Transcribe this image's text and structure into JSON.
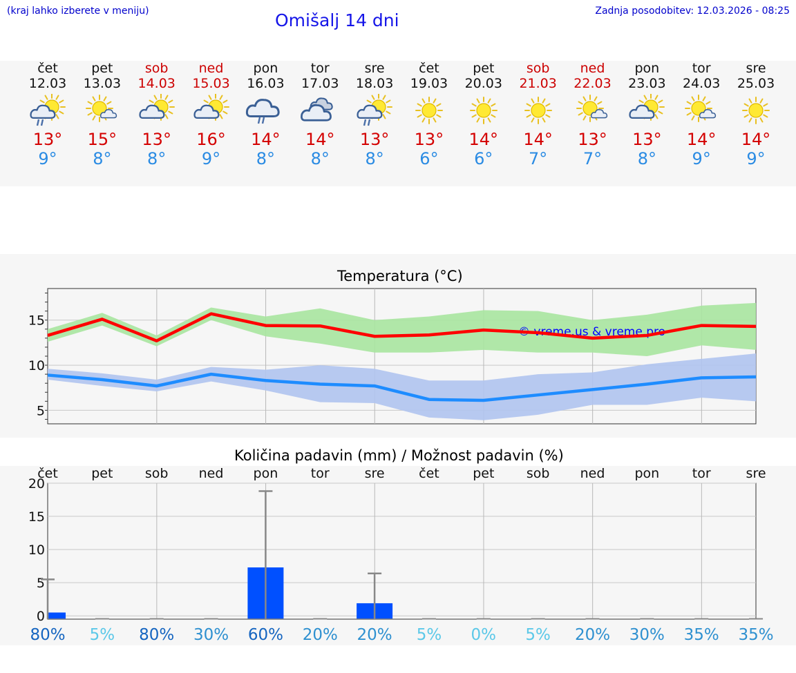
{
  "header": {
    "hint": "(kraj lahko izberete v meniju)",
    "title": "Omišalj 14 dni",
    "updated": "Zadnja posodobitev: 12.03.2026 - 08:25"
  },
  "forecast": [
    {
      "day": "čet",
      "date": "12.03",
      "weekend": false,
      "icon": "sun-cloud-rain-icon",
      "tmax": "13°",
      "tmin": "9°"
    },
    {
      "day": "pet",
      "date": "13.03",
      "weekend": false,
      "icon": "sun-small-cloud-icon",
      "tmax": "15°",
      "tmin": "8°"
    },
    {
      "day": "sob",
      "date": "14.03",
      "weekend": true,
      "icon": "sun-cloud-icon",
      "tmax": "13°",
      "tmin": "8°"
    },
    {
      "day": "ned",
      "date": "15.03",
      "weekend": true,
      "icon": "sun-cloud-icon",
      "tmax": "16°",
      "tmin": "9°"
    },
    {
      "day": "pon",
      "date": "16.03",
      "weekend": false,
      "icon": "cloud-rain-icon",
      "tmax": "14°",
      "tmin": "8°"
    },
    {
      "day": "tor",
      "date": "17.03",
      "weekend": false,
      "icon": "cloudy-icon",
      "tmax": "14°",
      "tmin": "8°"
    },
    {
      "day": "sre",
      "date": "18.03",
      "weekend": false,
      "icon": "sun-cloud-rain-icon",
      "tmax": "13°",
      "tmin": "8°"
    },
    {
      "day": "čet",
      "date": "19.03",
      "weekend": false,
      "icon": "sun-icon",
      "tmax": "13°",
      "tmin": "6°"
    },
    {
      "day": "pet",
      "date": "20.03",
      "weekend": false,
      "icon": "sun-icon",
      "tmax": "14°",
      "tmin": "6°"
    },
    {
      "day": "sob",
      "date": "21.03",
      "weekend": true,
      "icon": "sun-icon",
      "tmax": "14°",
      "tmin": "7°"
    },
    {
      "day": "ned",
      "date": "22.03",
      "weekend": true,
      "icon": "sun-small-cloud-icon",
      "tmax": "13°",
      "tmin": "7°"
    },
    {
      "day": "pon",
      "date": "23.03",
      "weekend": false,
      "icon": "sun-cloud-icon",
      "tmax": "13°",
      "tmin": "8°"
    },
    {
      "day": "tor",
      "date": "24.03",
      "weekend": false,
      "icon": "sun-small-cloud-icon",
      "tmax": "14°",
      "tmin": "9°"
    },
    {
      "day": "sre",
      "date": "25.03",
      "weekend": false,
      "icon": "sun-icon",
      "tmax": "14°",
      "tmin": "9°"
    }
  ],
  "colors": {
    "tmax_line": "#ff0000",
    "tmax_band": "#a8e6a0",
    "tmin_line": "#1e8cff",
    "tmin_band": "#b0c4f0",
    "precip_bar": "#0050ff",
    "watermark": "#0000ff"
  },
  "chart_data": [
    {
      "type": "line",
      "title": "Temperatura (°C)",
      "watermark": "© vreme.us & vreme.pro",
      "x": [
        0,
        1,
        2,
        3,
        4,
        5,
        6,
        7,
        8,
        9,
        10,
        11,
        12,
        13
      ],
      "ylim": [
        3.5,
        18.5
      ],
      "yticks": [
        5,
        10,
        15
      ],
      "series": [
        {
          "name": "max",
          "values": [
            13.3,
            15.1,
            12.7,
            15.7,
            14.4,
            14.35,
            13.2,
            13.35,
            13.9,
            13.6,
            13.0,
            13.3,
            14.4,
            14.3
          ],
          "band_low": [
            12.6,
            14.4,
            12.1,
            15.0,
            13.2,
            12.4,
            11.4,
            11.4,
            11.7,
            11.4,
            11.4,
            11.0,
            12.2,
            11.7
          ],
          "band_high": [
            14.0,
            15.8,
            13.3,
            16.4,
            15.4,
            16.3,
            15.0,
            15.4,
            16.1,
            16.0,
            15.0,
            15.6,
            16.6,
            16.9
          ]
        },
        {
          "name": "min",
          "values": [
            8.9,
            8.4,
            7.7,
            9.0,
            8.3,
            7.9,
            7.7,
            6.2,
            6.1,
            6.7,
            7.3,
            7.9,
            8.6,
            8.7
          ],
          "band_low": [
            8.4,
            7.7,
            7.1,
            8.2,
            7.2,
            5.9,
            5.8,
            4.2,
            3.9,
            4.5,
            5.6,
            5.6,
            6.4,
            6.0
          ],
          "band_high": [
            9.6,
            9.1,
            8.4,
            9.8,
            9.5,
            10.0,
            9.6,
            8.3,
            8.3,
            9.0,
            9.2,
            10.1,
            10.7,
            11.3
          ]
        }
      ]
    },
    {
      "type": "bar",
      "title": "Količina padavin (mm) / Možnost padavin (%)",
      "categories": [
        "čet",
        "pet",
        "sob",
        "ned",
        "pon",
        "tor",
        "sre",
        "čet",
        "pet",
        "sob",
        "ned",
        "pon",
        "tor",
        "sre"
      ],
      "ylim": [
        -0.5,
        20
      ],
      "yticks": [
        0,
        5,
        10,
        15,
        20
      ],
      "values": [
        0.5,
        0,
        0,
        0,
        7.3,
        0,
        0,
        0,
        0,
        0,
        0,
        0,
        0,
        0
      ],
      "values_sre": [
        0,
        0,
        0,
        0,
        0,
        0,
        1.9,
        0,
        0,
        0,
        0,
        0,
        0,
        0
      ],
      "max_values": [
        5.5,
        0,
        0,
        0,
        18.8,
        0,
        6.4,
        0,
        0,
        0,
        0,
        0,
        0,
        0
      ],
      "probability": [
        "80%",
        "5%",
        "80%",
        "30%",
        "60%",
        "20%",
        "20%",
        "5%",
        "0%",
        "5%",
        "20%",
        "30%",
        "35%",
        "35%"
      ],
      "probability_colors": [
        "#1565c0",
        "#5bc8e8",
        "#1565c0",
        "#2e90d0",
        "#1565c0",
        "#2e90d0",
        "#2e90d0",
        "#5bc8e8",
        "#5bc8e8",
        "#5bc8e8",
        "#2e90d0",
        "#2e90d0",
        "#2e90d0",
        "#2e90d0"
      ]
    }
  ]
}
